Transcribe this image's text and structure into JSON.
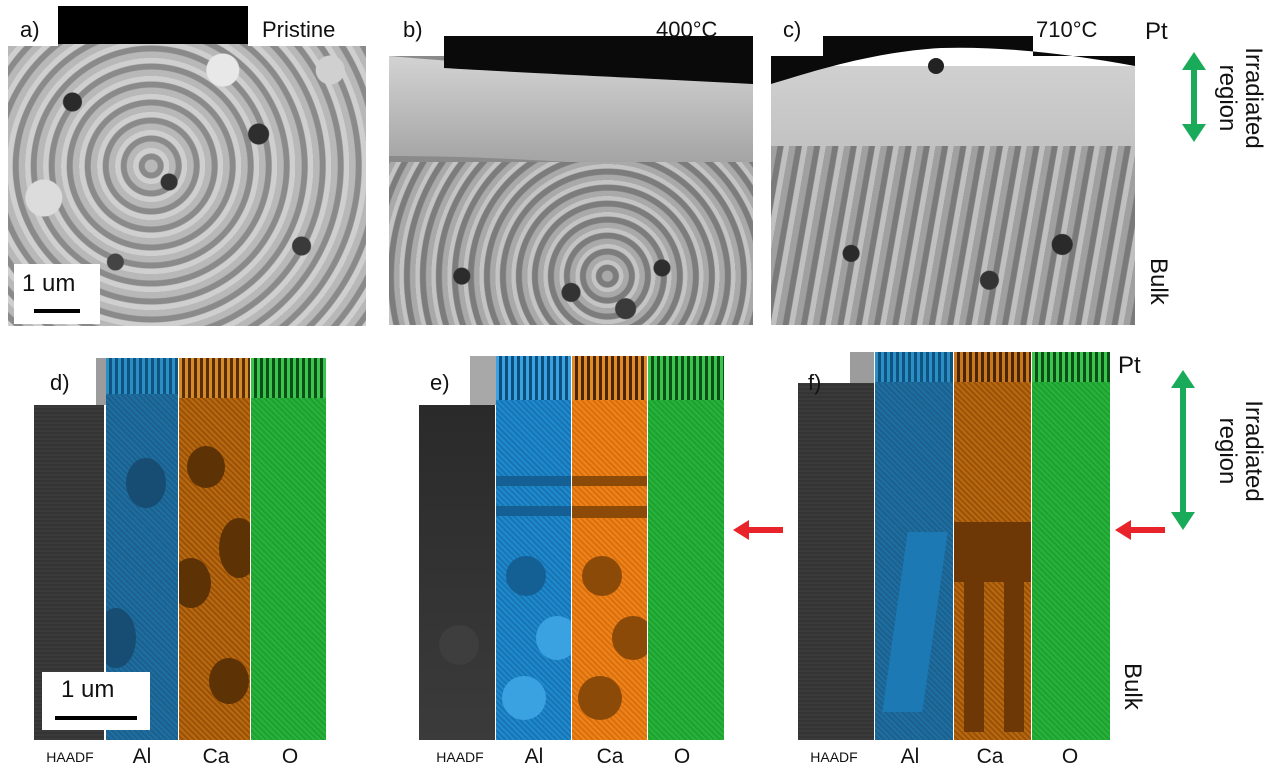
{
  "top_panels": [
    {
      "label": "a)",
      "temperature": "Pristine"
    },
    {
      "label": "b)",
      "temperature": "400°C"
    },
    {
      "label": "c)",
      "temperature": "710°C"
    }
  ],
  "bottom_panels": [
    {
      "label": "d)"
    },
    {
      "label": "e)"
    },
    {
      "label": "f)"
    }
  ],
  "top_scale_bar": "1 um",
  "bottom_scale_bar": "1 um",
  "column_labels": [
    "HAADF",
    "Al",
    "Ca",
    "O"
  ],
  "side_labels": {
    "pt": "Pt",
    "bulk": "Bulk",
    "irradiated_region": "Irradiated region"
  },
  "colors": {
    "arrow_green": "#1aab5a",
    "arrow_red": "#e8232a",
    "al": "#1e7bb8",
    "ca": "#c56a12",
    "o": "#26ab38"
  }
}
